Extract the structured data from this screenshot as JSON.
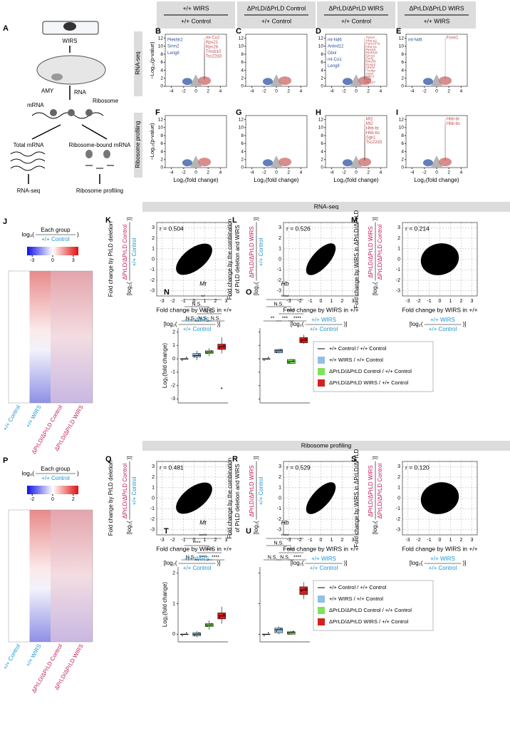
{
  "header": {
    "columns": [
      {
        "top": "+/+ WIRS",
        "bottom": "+/+ Control"
      },
      {
        "top": "ΔPrLD/ΔPrLD Control",
        "bottom": "+/+ Control"
      },
      {
        "top": "ΔPrLD/ΔPrLD WIRS",
        "bottom": "+/+ Control"
      },
      {
        "top": "ΔPrLD/ΔPrLD WIRS",
        "bottom": "+/+ WIRS"
      }
    ]
  },
  "schematic": {
    "letter": "A",
    "device": "WIRS",
    "region": "AMY",
    "rna": "RNA",
    "ribosome": "Ribosome",
    "mrna": "mRNA",
    "left_branch": "Total mRNA",
    "right_branch": "Ribosome-bound mRNA",
    "left_method": "RNA-seq",
    "right_method": "Ribosome profiling"
  },
  "volcano": {
    "row_labels": [
      "RNA-seq",
      "Ribosome profiling"
    ],
    "xlabel": "Log₂(fold change)",
    "ylabel": "−Log₁₀(p-value)",
    "xlim": [
      -5,
      5
    ],
    "ylim": [
      0,
      13
    ],
    "xticks": [
      -4,
      -2,
      0,
      2,
      4
    ],
    "yticks": [
      0,
      2,
      4,
      6,
      8,
      10,
      12
    ],
    "panels": [
      {
        "letter": "B",
        "down": [
          "Plekhh2",
          "Srrm2",
          "Leng8"
        ],
        "up": [
          "mt-Co2",
          "Rps21",
          "Rps28",
          "Tmsb10",
          "Tsc22d3"
        ]
      },
      {
        "letter": "C",
        "down": [],
        "up": []
      },
      {
        "letter": "D",
        "down": [
          "mt-Nd6",
          "Ankrd12",
          "Dbnl",
          "mt-Co1",
          "Leng8"
        ],
        "up": [
          "Pam3",
          "Hba-a2",
          "Fam107a",
          "Hba-a1",
          "Rps29",
          "Nedd1b",
          "Glcci1",
          "Znrf2",
          "Med30",
          "Dusp2",
          "Ube2t",
          "Tnobp",
          "Aspn",
          "Mier3",
          "Mt2",
          "Rps27"
        ]
      },
      {
        "letter": "E",
        "down": [
          "mt-Nd6"
        ],
        "up": [
          "Foxe1"
        ]
      },
      {
        "letter": "F",
        "down": [],
        "up": []
      },
      {
        "letter": "G",
        "down": [],
        "up": []
      },
      {
        "letter": "H",
        "down": [],
        "up": [
          "Mt1",
          "Mt2",
          "Hbb-bt",
          "Hbb-bs",
          "Sgk1",
          "Tsc22d3"
        ]
      },
      {
        "letter": "I",
        "down": [],
        "up": [
          "Hbb-bt",
          "Hbb-bs"
        ]
      }
    ]
  },
  "sections": [
    {
      "title": "RNA-seq",
      "heatmap": {
        "letter": "J",
        "prefix": "log₂(",
        "numerator": "Each group",
        "denominator": "+/+ Control",
        "suffix": ")",
        "colorbar_ticks": [
          -3,
          0,
          3
        ],
        "columns": [
          "+/+ Control",
          "+/+ WIRS",
          "ΔPrLD/ΔPrLD Control",
          "ΔPrLD/ΔPrLD WIRS"
        ]
      },
      "scatter": {
        "xlim": [
          -3.5,
          3.5
        ],
        "ylim": [
          -3.5,
          3.5
        ],
        "xticks": [
          -3,
          -2,
          -1,
          0,
          1,
          2,
          3
        ],
        "yticks": [
          -3,
          -2,
          -1,
          0,
          1,
          2,
          3
        ],
        "xlabel": "Fold change by WIRS in +/+",
        "prefix": "[log₂(",
        "suffix": ")]",
        "x_numerator": "+/+ WIRS",
        "x_denominator": "+/+ Control",
        "panels": [
          {
            "letter": "K",
            "r": "r = 0.504",
            "ylabel": [
              "Fold change by PrLD deletion"
            ],
            "numerator": "ΔPrLD/ΔPrLD Control",
            "denominator": "+/+ Control"
          },
          {
            "letter": "L",
            "r": "r = 0.526",
            "ylabel": [
              "Fold change by the combination",
              "of PrLD deletion and WIRS"
            ],
            "numerator": "ΔPrLD/ΔPrLD WIRS",
            "denominator": "+/+ Control"
          },
          {
            "letter": "M",
            "r": "r = 0.214",
            "ylabel": [
              "Fold change by WIRS in ΔPrLD/ΔPrLD"
            ],
            "numerator": "ΔPrLD/ΔPrLD WIRS",
            "denominator": "ΔPrLD/ΔPrLD Control"
          }
        ]
      },
      "boxplot": {
        "ylabel": "Log₂(fold change)",
        "ylim": [
          -3.3,
          2.3
        ],
        "yticks": [
          -3,
          -2,
          -1,
          0,
          1,
          2
        ],
        "colors": [
          "#000000",
          "#93bfe6",
          "#7fe25a",
          "#d42020"
        ],
        "panels": [
          {
            "letter": "N",
            "gene": "Mt",
            "groups": [
              {
                "whisker_low": 0,
                "q1": 0,
                "median": 0,
                "q3": 0,
                "whisker_high": 0
              },
              {
                "whisker_low": -0.1,
                "q1": 0.15,
                "median": 0.25,
                "q3": 0.4,
                "whisker_high": 0.6
              },
              {
                "whisker_low": 0.2,
                "q1": 0.4,
                "median": 0.5,
                "q3": 0.6,
                "whisker_high": 0.8
              },
              {
                "whisker_low": 0.4,
                "q1": 0.7,
                "median": 0.9,
                "q3": 1.1,
                "whisker_high": 1.6,
                "outliers": [
                  -2.2
                ]
              }
            ],
            "significance": [
              "**",
              "N.S.",
              "N.S.",
              "N.S.",
              "N.S.",
              "N.S."
            ]
          },
          {
            "letter": "O",
            "gene": "Hb",
            "groups": [
              {
                "whisker_low": 0,
                "q1": 0,
                "median": 0,
                "q3": 0,
                "whisker_high": 0
              },
              {
                "whisker_low": 0.4,
                "q1": 0.45,
                "median": 0.6,
                "q3": 0.7,
                "whisker_high": 0.75
              },
              {
                "whisker_low": -0.4,
                "q1": -0.35,
                "median": -0.2,
                "q3": -0.05,
                "whisker_high": 0
              },
              {
                "whisker_low": 1.1,
                "q1": 1.2,
                "median": 1.4,
                "q3": 1.6,
                "whisker_high": 1.8
              }
            ],
            "significance": [
              "****",
              "N.S.",
              "****",
              "**",
              "***",
              "****"
            ]
          }
        ]
      },
      "legend": [
        "+/+ Control / +/+ Control",
        "+/+ WIRS / +/+ Control",
        "ΔPrLD/ΔPrLD Control / +/+ Control",
        "ΔPrLD/ΔPrLD WIRS / +/+ Control"
      ]
    },
    {
      "title": "Ribosome profiling",
      "heatmap": {
        "letter": "P",
        "prefix": "log₂(",
        "numerator": "Each group",
        "denominator": "+/+ Control",
        "suffix": ")",
        "colorbar_ticks": [
          -2,
          0,
          2
        ],
        "columns": [
          "+/+ Control",
          "+/+ WIRS",
          "ΔPrLD/ΔPrLD Control",
          "ΔPrLD/ΔPrLD WIRS"
        ]
      },
      "scatter": {
        "xlim": [
          -3.5,
          3.5
        ],
        "ylim": [
          -3.5,
          3.5
        ],
        "xticks": [
          -3,
          -2,
          -1,
          0,
          1,
          2,
          3
        ],
        "yticks": [
          -3,
          -2,
          -1,
          0,
          1,
          2,
          3
        ],
        "xlabel": "Fold change by WIRS in +/+",
        "prefix": "[log₂(",
        "suffix": ")]",
        "x_numerator": "+/+ WIRS",
        "x_denominator": "+/+ Control",
        "panels": [
          {
            "letter": "Q",
            "r": "r = 0.481",
            "ylabel": [
              "Fold change by PrLD deletion"
            ],
            "numerator": "ΔPrLD/ΔPrLD Control",
            "denominator": "+/+ Control"
          },
          {
            "letter": "R",
            "r": "r = 0.529",
            "ylabel": [
              "Fold change by the combination",
              "of PrLD deletion and WIRS"
            ],
            "numerator": "ΔPrLD/ΔPrLD WIRS",
            "denominator": "+/+ Control"
          },
          {
            "letter": "S",
            "r": "r = 0.120",
            "ylabel": [
              "Fold change by WIRS in ΔPrLD/ΔPrLD"
            ],
            "numerator": "ΔPrLD/ΔPrLD WIRS",
            "denominator": "ΔPrLD/ΔPrLD Control"
          }
        ]
      },
      "boxplot": {
        "ylabel": "Log₂(fold change)",
        "ylim": [
          -0.25,
          2.2
        ],
        "yticks": [
          0,
          1,
          2
        ],
        "colors": [
          "#000000",
          "#93bfe6",
          "#7fe25a",
          "#d42020"
        ],
        "panels": [
          {
            "letter": "T",
            "gene": "Mt",
            "groups": [
              {
                "whisker_low": 0,
                "q1": 0,
                "median": 0,
                "q3": 0,
                "whisker_high": 0
              },
              {
                "whisker_low": -0.1,
                "q1": -0.05,
                "median": 0,
                "q3": 0.05,
                "whisker_high": 0.1
              },
              {
                "whisker_low": 0.15,
                "q1": 0.25,
                "median": 0.3,
                "q3": 0.35,
                "whisker_high": 0.45
              },
              {
                "whisker_low": 0.35,
                "q1": 0.5,
                "median": 0.6,
                "q3": 0.7,
                "whisker_high": 0.9
              }
            ],
            "significance": [
              "****",
              "****",
              "****",
              "N.S.",
              "****",
              "****"
            ]
          },
          {
            "letter": "U",
            "gene": "Hb",
            "groups": [
              {
                "whisker_low": 0,
                "q1": 0,
                "median": 0,
                "q3": 0,
                "whisker_high": 0
              },
              {
                "whisker_low": 0,
                "q1": 0.05,
                "median": 0.15,
                "q3": 0.2,
                "whisker_high": 0.25
              },
              {
                "whisker_low": -0.02,
                "q1": 0,
                "median": 0.05,
                "q3": 0.08,
                "whisker_high": 0.1
              },
              {
                "whisker_low": 1.15,
                "q1": 1.3,
                "median": 1.45,
                "q3": 1.55,
                "whisker_high": 1.7
              }
            ],
            "significance": [
              "****",
              "N.S.",
              "****",
              "N.S.",
              "N.S.",
              "****"
            ]
          }
        ]
      },
      "legend": [
        "+/+ Control / +/+ Control",
        "+/+ WIRS / +/+ Control",
        "ΔPrLD/ΔPrLD Control / +/+ Control",
        "ΔPrLD/ΔPrLD WIRS / +/+ Control"
      ]
    }
  ]
}
